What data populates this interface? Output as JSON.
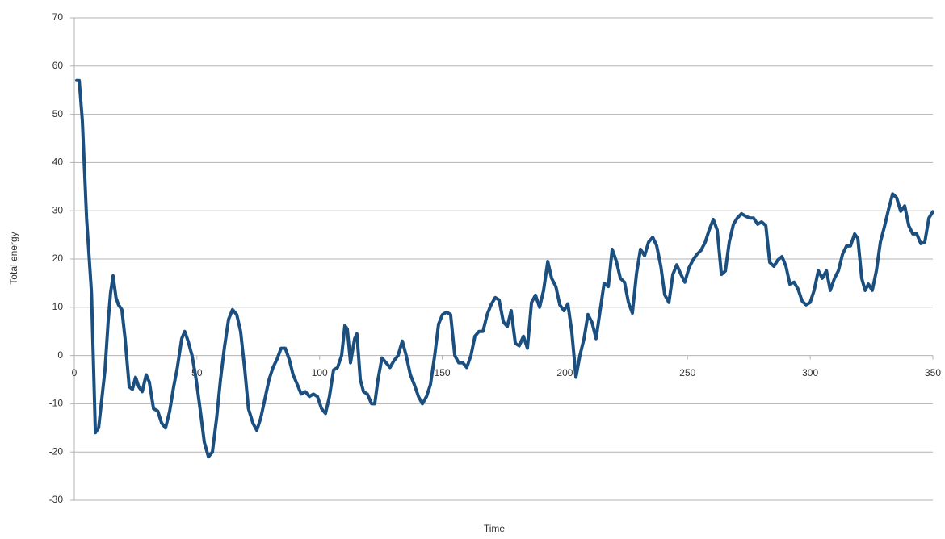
{
  "chart_data": {
    "type": "line",
    "xlabel": "Time",
    "ylabel": "Total energy",
    "x": [
      1,
      2,
      3.3,
      5,
      7,
      8.6,
      9.9,
      11,
      12.5,
      13.8,
      14.8,
      15.8,
      17,
      18,
      19.4,
      20.7,
      22.4,
      23.7,
      25,
      26.3,
      27.7,
      29.3,
      30.6,
      32.3,
      34,
      35.6,
      37.2,
      38.9,
      40.5,
      42,
      43.8,
      45,
      46.4,
      48,
      49.7,
      51.4,
      53,
      54.7,
      56.3,
      58,
      59.6,
      61.2,
      62.9,
      64.5,
      66.2,
      67.8,
      69.5,
      71,
      72.8,
      74.4,
      76,
      77.7,
      79.4,
      81,
      82.6,
      84.3,
      86,
      87.6,
      89.2,
      90.9,
      92.5,
      94.2,
      95.8,
      97.5,
      99.1,
      100.8,
      102.4,
      104,
      105.7,
      107.3,
      109,
      110.3,
      111.3,
      112.6,
      114.3,
      115.2,
      116.6,
      117.9,
      119.5,
      121.2,
      122.5,
      123.8,
      125.4,
      127.1,
      128.7,
      130.4,
      132,
      133.7,
      135.3,
      137,
      138.6,
      140.3,
      141.9,
      143.6,
      145.2,
      146.9,
      148.5,
      150.1,
      151.8,
      153.4,
      155.1,
      156.7,
      158.4,
      160,
      161.7,
      163.3,
      165,
      166.6,
      168.3,
      169.9,
      171.6,
      173.2,
      174.9,
      176.5,
      178.1,
      179.8,
      181.4,
      183.1,
      184.7,
      186.4,
      188,
      189.7,
      191.3,
      193,
      194.6,
      196.3,
      197.9,
      199.6,
      201.2,
      202.8,
      204.5,
      206.1,
      207.8,
      209.4,
      211.1,
      212.7,
      214.4,
      216,
      217.7,
      219.3,
      221,
      222.6,
      224.3,
      225.9,
      227.5,
      229.2,
      230.8,
      232.5,
      234.1,
      235.8,
      237.4,
      239.1,
      240.7,
      242.4,
      244,
      245.6,
      247.3,
      248.9,
      250.6,
      252.2,
      253.9,
      255.5,
      257.2,
      258.8,
      260.5,
      262.1,
      263.8,
      265.4,
      267,
      268.7,
      270.3,
      272,
      273.6,
      275.3,
      276.9,
      278.6,
      280.2,
      281.9,
      283.5,
      285.2,
      286.8,
      288.5,
      290.1,
      291.7,
      293.4,
      295,
      296.7,
      298.3,
      300,
      301.6,
      303.3,
      304.9,
      306.6,
      308.2,
      309.9,
      311.5,
      313.2,
      314.8,
      316.4,
      318.1,
      319.4,
      321,
      322.4,
      323.7,
      325.3,
      327,
      328.6,
      330.3,
      331.9,
      333.6,
      335.2,
      336.9,
      338.5,
      340.2,
      341.8,
      343.4,
      345.1,
      346.7,
      348.4,
      350
    ],
    "series": [
      {
        "name": "Total energy",
        "color": "#1a4f80",
        "values": [
          57,
          57,
          48.6,
          28.5,
          13,
          -16,
          -15,
          -10,
          -3,
          7,
          13,
          16.5,
          12,
          10.5,
          9.5,
          3.5,
          -6.5,
          -7,
          -4.5,
          -6.5,
          -7.5,
          -4,
          -5.5,
          -11,
          -11.5,
          -14,
          -15,
          -11.5,
          -6.5,
          -2.5,
          3.5,
          5,
          3,
          0,
          -5,
          -11.5,
          -18,
          -21,
          -20,
          -13,
          -5,
          1.7,
          7.5,
          9.5,
          8.5,
          5,
          -3,
          -11,
          -14,
          -15.5,
          -13,
          -9,
          -5,
          -2.5,
          -0.8,
          1.5,
          1.5,
          -0.8,
          -4,
          -6,
          -8,
          -7.5,
          -8.5,
          -8,
          -8.5,
          -11,
          -12,
          -8.5,
          -3,
          -2.5,
          0,
          6.2,
          5.5,
          -1.5,
          3.5,
          4.5,
          -5,
          -7.5,
          -8,
          -10,
          -10,
          -5,
          -0.5,
          -1.5,
          -2.5,
          -1,
          0,
          3,
          0,
          -4,
          -6,
          -8.5,
          -10,
          -8.5,
          -6,
          0,
          6.5,
          8.5,
          9,
          8.5,
          0,
          -1.5,
          -1.5,
          -2.5,
          0,
          4,
          5,
          5,
          8.5,
          10.5,
          12,
          11.5,
          7,
          6,
          9.3,
          2.5,
          2,
          4,
          1.5,
          11,
          12.5,
          10,
          13.5,
          19.5,
          16,
          14.3,
          10.5,
          9.3,
          10.7,
          5,
          -4.5,
          0,
          3.5,
          8.5,
          6.8,
          3.5,
          9.5,
          15,
          14.3,
          22,
          19.5,
          16,
          15.2,
          11,
          8.8,
          17,
          22,
          20.7,
          23.5,
          24.5,
          22.8,
          18.5,
          12.6,
          11,
          16.8,
          18.8,
          16.8,
          15.2,
          18.2,
          19.8,
          21,
          21.8,
          23.5,
          26,
          28.2,
          26,
          16.8,
          17.5,
          23.5,
          27.2,
          28.5,
          29.4,
          28.9,
          28.5,
          28.5,
          27.2,
          27.7,
          26.9,
          19.3,
          18.5,
          19.8,
          20.5,
          18.5,
          14.8,
          15.2,
          13.8,
          11.3,
          10.5,
          11,
          13.5,
          17.6,
          16,
          17.6,
          13.5,
          16,
          17.6,
          21,
          22.7,
          22.7,
          25.2,
          24.3,
          16,
          13.5,
          14.8,
          13.5,
          17.6,
          23.5,
          26.8,
          30.2,
          33.5,
          32.7,
          29.9,
          31,
          26.9,
          25.2,
          25.2,
          23.2,
          23.5,
          28.5,
          29.8
        ]
      }
    ],
    "xlim": [
      0,
      350
    ],
    "xticks": [
      0,
      50,
      100,
      150,
      200,
      250,
      300,
      350
    ],
    "ylim": [
      -30,
      70
    ],
    "yticks": [
      -30,
      -20,
      -10,
      0,
      10,
      20,
      30,
      40,
      50,
      60,
      70
    ],
    "grid": true
  }
}
